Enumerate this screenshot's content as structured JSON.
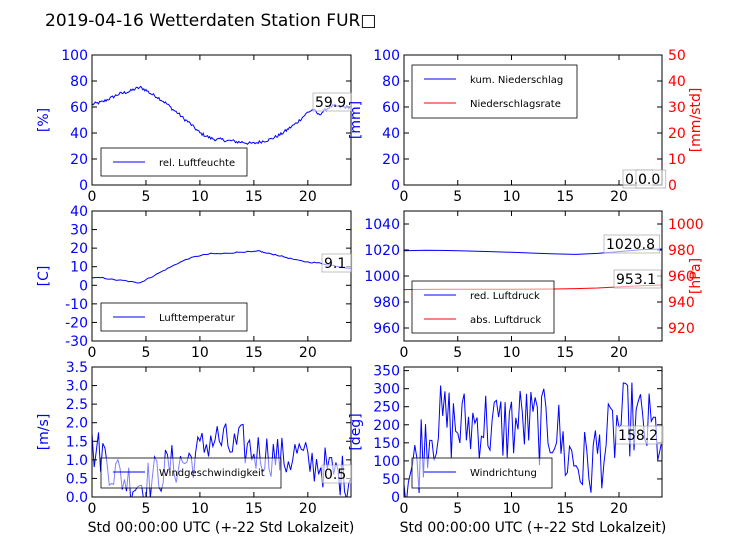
{
  "title": "2019-04-16 Wetterdaten Station FUR□",
  "xlabel_bottom": "Std 00:00:00 UTC (+-22 Std Lokalzeit)",
  "colors": {
    "primary": "#0000ff",
    "secondary": "#ff0000",
    "text": "#000000"
  },
  "chart_data": [
    {
      "id": "humidity",
      "type": "line",
      "ylabel": "[%]",
      "ylim": [
        0,
        100
      ],
      "yticks": [
        0,
        20,
        40,
        60,
        80,
        100
      ],
      "xlim": [
        0,
        24
      ],
      "xticks": [
        0,
        5,
        10,
        15,
        20
      ],
      "legend": {
        "location": "lower-left",
        "entries": [
          "rel. Luftfeuchte"
        ]
      },
      "annotations": [
        "59.9"
      ],
      "series": [
        {
          "name": "rel. Luftfeuchte",
          "axis": "left",
          "color": "#0000ff",
          "noise": 1.2,
          "x": [
            0,
            0.5,
            1,
            1.5,
            2,
            2.5,
            3,
            3.5,
            4,
            4.5,
            5,
            5.5,
            6,
            6.5,
            7,
            7.5,
            8,
            8.5,
            9,
            9.5,
            10,
            10.5,
            11,
            11.5,
            12,
            12.5,
            13,
            13.5,
            14,
            14.5,
            15,
            15.5,
            16,
            16.5,
            17,
            17.5,
            18,
            18.5,
            19,
            19.5,
            20,
            20.5,
            21,
            21.5,
            22,
            22.5,
            23,
            23.5,
            24
          ],
          "y": [
            62,
            63,
            64,
            66,
            68,
            70,
            71,
            72,
            74,
            75,
            73,
            70,
            68,
            65,
            62,
            58,
            55,
            51,
            48,
            44,
            40,
            38,
            36,
            35,
            35,
            34,
            34,
            33,
            33,
            32,
            32,
            33,
            34,
            35,
            37,
            39,
            42,
            45,
            48,
            52,
            56,
            58,
            54,
            57,
            60,
            61,
            60,
            60,
            59.9
          ]
        }
      ]
    },
    {
      "id": "precipitation",
      "type": "line",
      "ylabel": "[mm]",
      "ylabel_right": "[mm/std]",
      "ylim": [
        0,
        100
      ],
      "yticks": [
        0,
        20,
        40,
        60,
        80,
        100
      ],
      "ylim_right": [
        0,
        50
      ],
      "yticks_right": [
        0,
        10,
        20,
        30,
        40,
        50
      ],
      "xlim": [
        0,
        24
      ],
      "xticks": [
        0,
        5,
        10,
        15,
        20
      ],
      "legend": {
        "location": "upper-left",
        "entries": [
          "kum. Niederschlag",
          "Niederschlagsrate"
        ]
      },
      "annotations": [
        "0.0",
        "0.0"
      ],
      "series": [
        {
          "name": "kum. Niederschlag",
          "axis": "left",
          "color": "#0000ff",
          "noise": 0,
          "x": [
            0,
            24
          ],
          "y": [
            0,
            0
          ]
        },
        {
          "name": "Niederschlagsrate",
          "axis": "right",
          "color": "#ff0000",
          "noise": 0,
          "x": [
            0,
            24
          ],
          "y": [
            0,
            0
          ]
        }
      ]
    },
    {
      "id": "temperature",
      "type": "line",
      "ylabel": "[C]",
      "ylim": [
        -30,
        40
      ],
      "yticks": [
        -30,
        -20,
        -10,
        0,
        10,
        20,
        30,
        40
      ],
      "xlim": [
        0,
        24
      ],
      "xticks": [
        0,
        5,
        10,
        15,
        20
      ],
      "legend": {
        "location": "lower-left",
        "entries": [
          "Lufttemperatur"
        ]
      },
      "annotations": [
        "9.1"
      ],
      "series": [
        {
          "name": "Lufttemperatur",
          "axis": "left",
          "color": "#0000ff",
          "noise": 0.3,
          "x": [
            0,
            1,
            2,
            3,
            4,
            4.5,
            5,
            6,
            7,
            8,
            9,
            10,
            11,
            12,
            13,
            14,
            15,
            15.5,
            16,
            17,
            18,
            19,
            20,
            21,
            22,
            23,
            24
          ],
          "y": [
            4,
            4,
            3,
            2.5,
            1.5,
            1.5,
            3,
            6,
            9,
            12,
            14.5,
            16,
            17,
            17,
            17.5,
            18,
            18,
            18.5,
            17.5,
            16.5,
            15,
            13.5,
            12.5,
            12,
            11,
            10,
            9.1
          ]
        }
      ]
    },
    {
      "id": "pressure",
      "type": "line",
      "ylabel_right": "[hPa]",
      "ylim": [
        950,
        1050
      ],
      "yticks": [
        960,
        980,
        1000,
        1020,
        1040
      ],
      "ylim_right": [
        910,
        1010
      ],
      "yticks_right": [
        920,
        940,
        960,
        980,
        1000
      ],
      "xlim": [
        0,
        24
      ],
      "xticks": [
        0,
        5,
        10,
        15,
        20
      ],
      "legend": {
        "location": "lower-left",
        "entries": [
          "red. Luftdruck",
          "abs. Luftdruck"
        ]
      },
      "annotations": [
        "1020.8",
        "953.1"
      ],
      "series": [
        {
          "name": "red. Luftdruck",
          "axis": "left",
          "color": "#0000ff",
          "noise": 0,
          "x": [
            0,
            2,
            4,
            6,
            8,
            10,
            12,
            14,
            16,
            18,
            20,
            22,
            24
          ],
          "y": [
            1019.5,
            1019.8,
            1019.6,
            1019.2,
            1018.8,
            1018.2,
            1017.6,
            1017.0,
            1016.6,
            1017.4,
            1018.8,
            1020.2,
            1020.8
          ]
        },
        {
          "name": "abs. Luftdruck",
          "axis": "right",
          "color": "#ff0000",
          "noise": 0,
          "x": [
            0,
            2,
            4,
            6,
            8,
            10,
            12,
            14,
            16,
            18,
            20,
            22,
            24
          ],
          "y": [
            949.5,
            949.7,
            949.8,
            949.8,
            949.8,
            949.8,
            949.9,
            950.0,
            950.3,
            950.8,
            951.6,
            952.5,
            953.1
          ]
        }
      ]
    },
    {
      "id": "windspeed",
      "type": "line",
      "ylabel": "[m/s]",
      "ylim": [
        0,
        3.5
      ],
      "yticks": [
        "0.0",
        "0.5",
        "1.0",
        "1.5",
        "2.0",
        "2.5",
        "3.0",
        "3.5"
      ],
      "xlim": [
        0,
        24
      ],
      "xticks": [
        0,
        5,
        10,
        15,
        20
      ],
      "legend": {
        "location": "lower-left",
        "entries": [
          "Windgeschwindigkeit"
        ]
      },
      "annotations": [
        "0.5"
      ],
      "series": [
        {
          "name": "Windgeschwindigkeit",
          "axis": "left",
          "color": "#0000ff",
          "noise": 0.6,
          "x": [
            0,
            1,
            2,
            3,
            4,
            5,
            6,
            7,
            8,
            9,
            10,
            11,
            12,
            13,
            14,
            15,
            16,
            17,
            18,
            19,
            20,
            21,
            22,
            23,
            24
          ],
          "y": [
            1.3,
            1.2,
            0.7,
            0.5,
            0.4,
            0.4,
            0.6,
            0.8,
            0.9,
            1.0,
            1.2,
            1.6,
            1.5,
            1.3,
            1.4,
            1.2,
            1.2,
            1.1,
            1.0,
            1.2,
            0.9,
            0.9,
            0.7,
            0.6,
            0.5
          ]
        }
      ]
    },
    {
      "id": "winddirection",
      "type": "line",
      "ylabel": "[deg]",
      "ylim": [
        0,
        360
      ],
      "yticks": [
        0,
        50,
        100,
        150,
        200,
        250,
        300,
        350
      ],
      "xlim": [
        0,
        24
      ],
      "xticks": [
        0,
        5,
        10,
        15,
        20
      ],
      "legend": {
        "location": "lower-left",
        "entries": [
          "Windrichtung"
        ]
      },
      "annotations": [
        "158.2"
      ],
      "series": [
        {
          "name": "Windrichtung",
          "axis": "left",
          "color": "#0000ff",
          "noise": 110,
          "x": [
            0,
            1,
            2,
            3,
            4,
            5,
            6,
            7,
            8,
            9,
            10,
            11,
            12,
            13,
            14,
            15,
            16,
            17,
            18,
            19,
            20,
            21,
            22,
            23,
            24
          ],
          "y": [
            60,
            80,
            180,
            200,
            210,
            190,
            200,
            210,
            200,
            190,
            200,
            210,
            200,
            190,
            200,
            120,
            100,
            80,
            120,
            150,
            200,
            220,
            200,
            180,
            158.2
          ]
        }
      ]
    }
  ]
}
